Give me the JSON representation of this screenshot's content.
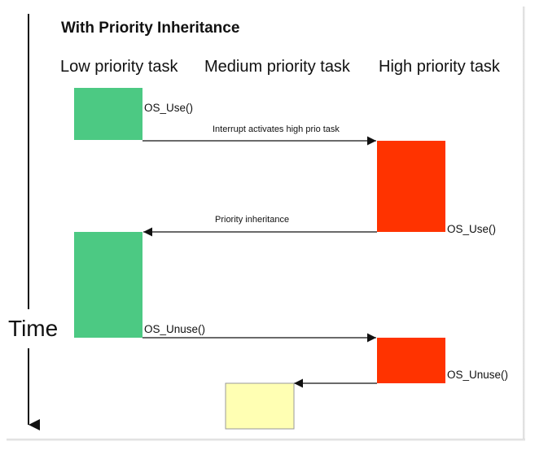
{
  "title": "With Priority Inheritance",
  "columns": {
    "low": "Low priority task",
    "medium": "Medium priority task",
    "high": "High priority task"
  },
  "axis": {
    "label": "Time"
  },
  "calls": {
    "low_use": "OS_Use()",
    "high_use": "OS_Use()",
    "low_unuse": "OS_Unuse()",
    "high_unuse": "OS_Unuse()"
  },
  "transitions": {
    "interrupt": "Interrupt activates high prio task",
    "inheritance": "Priority inheritance"
  },
  "colors": {
    "low_task": "#4cc983",
    "high_task": "#ff3300",
    "medium_task": "#ffffb3",
    "ink": "#111111"
  }
}
